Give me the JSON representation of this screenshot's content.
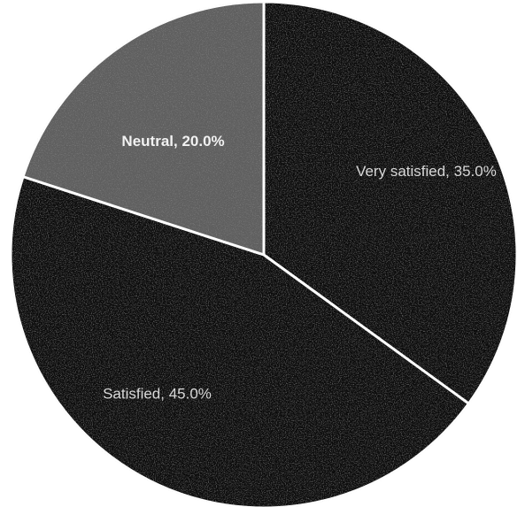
{
  "chart_data": {
    "type": "pie",
    "title": "",
    "slices": [
      {
        "label": "Very satisfied",
        "value": 35.0,
        "display": "Very satisfied, 35.0%",
        "color": "#0b0b0b"
      },
      {
        "label": "Satisfied",
        "value": 45.0,
        "display": "Satisfied, 45.0%",
        "color": "#101010"
      },
      {
        "label": "Neutral",
        "value": 20.0,
        "display": "Neutral, 20.0%",
        "color": "#5f5f5f"
      }
    ],
    "start_angle_deg": 0,
    "direction": "clockwise",
    "legend": "none",
    "data_labels": "inside"
  }
}
